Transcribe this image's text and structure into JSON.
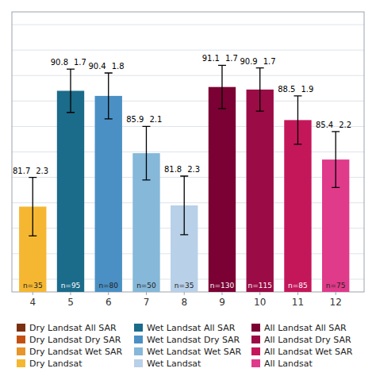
{
  "chart_data": {
    "type": "bar",
    "x": [
      4,
      5,
      6,
      7,
      8,
      9,
      10,
      11,
      12
    ],
    "values": [
      81.7,
      90.8,
      90.4,
      85.9,
      81.8,
      91.1,
      90.9,
      88.5,
      85.4
    ],
    "errors": [
      2.3,
      1.7,
      1.8,
      2.1,
      2.3,
      1.7,
      1.7,
      1.9,
      2.2
    ],
    "colors": [
      "#F5B731",
      "#1B6B8A",
      "#4A90C4",
      "#85B8D9",
      "#B8D0E8",
      "#7B0033",
      "#9B0B45",
      "#C4175A",
      "#E03A8A"
    ],
    "n_labels": [
      "n=35",
      "n=95",
      "n=80",
      "n=50",
      "n=35",
      "n=130",
      "n=115",
      "n=85",
      "n=75"
    ],
    "xlim": [
      3.45,
      12.75
    ],
    "xticks": [
      4,
      5,
      6,
      7,
      8,
      9,
      10,
      11,
      12
    ],
    "ylim": [
      75,
      97
    ],
    "yticks": [
      76,
      78,
      80,
      82,
      84,
      86,
      88,
      90,
      92,
      94,
      96
    ],
    "grid": true,
    "tick_labels": "x",
    "data_labels": true,
    "legend": "bottom",
    "legend_entries": [
      {
        "label": "Dry Landsat All SAR",
        "color": "#7B3010"
      },
      {
        "label": "Dry Landsat Dry SAR",
        "color": "#C45010"
      },
      {
        "label": "Dry Landsat Wet SAR",
        "color": "#E8952A"
      },
      {
        "label": "Dry Landsat",
        "color": "#F5B731"
      },
      {
        "label": "Wet Landsat All SAR",
        "color": "#1B6B8A"
      },
      {
        "label": "Wet Landsat Dry SAR",
        "color": "#4A90C4"
      },
      {
        "label": "Wet Landsat Wet SAR",
        "color": "#85B8D9"
      },
      {
        "label": "Wet Landsat",
        "color": "#B8D0E8"
      },
      {
        "label": "All Landsat All SAR",
        "color": "#7B0033"
      },
      {
        "label": "All Landsat Dry SAR",
        "color": "#9B0B45"
      },
      {
        "label": "All Landsat Wet SAR",
        "color": "#C4175A"
      },
      {
        "label": "All Landsat",
        "color": "#E03A8A"
      }
    ]
  }
}
